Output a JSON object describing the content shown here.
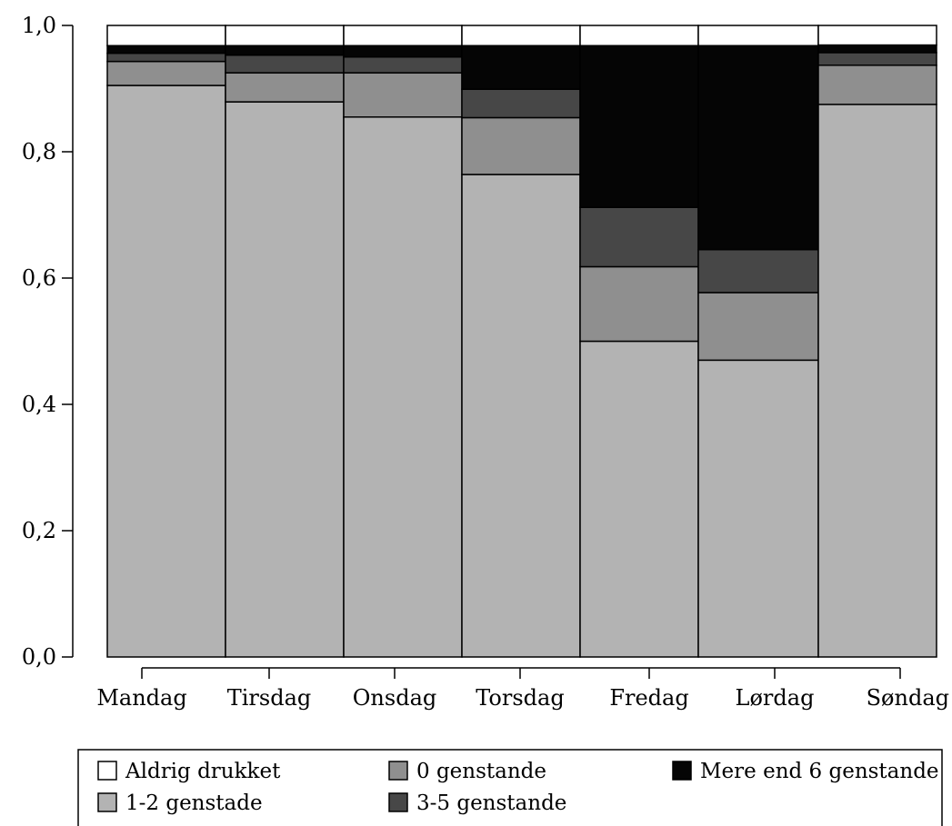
{
  "chart_data": {
    "type": "bar",
    "stacked": true,
    "categories": [
      "Mandag",
      "Tirsdag",
      "Onsdag",
      "Torsdag",
      "Fredag",
      "Lørdag",
      "Søndag"
    ],
    "ylim": [
      0,
      1
    ],
    "yticks": [
      "0,0",
      "0,2",
      "0,4",
      "0,6",
      "0,8",
      "1,0"
    ],
    "series": [
      {
        "name": "1-2 genstade",
        "color": "#b3b3b3",
        "values": [
          0.905,
          0.879,
          0.855,
          0.764,
          0.5,
          0.47,
          0.875
        ]
      },
      {
        "name": "0 genstande",
        "color": "#8f8f8f",
        "values": [
          0.038,
          0.046,
          0.07,
          0.09,
          0.118,
          0.107,
          0.062
        ]
      },
      {
        "name": "3-5 genstande",
        "color": "#474747",
        "values": [
          0.013,
          0.028,
          0.025,
          0.045,
          0.094,
          0.068,
          0.02
        ]
      },
      {
        "name": "Mere end 6 genstande",
        "color": "#050505",
        "values": [
          0.012,
          0.015,
          0.018,
          0.069,
          0.256,
          0.323,
          0.012
        ]
      },
      {
        "name": "Aldrig drukket",
        "color": "#ffffff",
        "values": [
          0.032,
          0.032,
          0.032,
          0.032,
          0.032,
          0.032,
          0.031
        ]
      }
    ],
    "legend": {
      "placement": "bottom",
      "entries": [
        "Aldrig drukket",
        "0 genstande",
        "Mere end 6 genstande",
        "1-2 genstade",
        "3-5 genstande"
      ]
    }
  }
}
